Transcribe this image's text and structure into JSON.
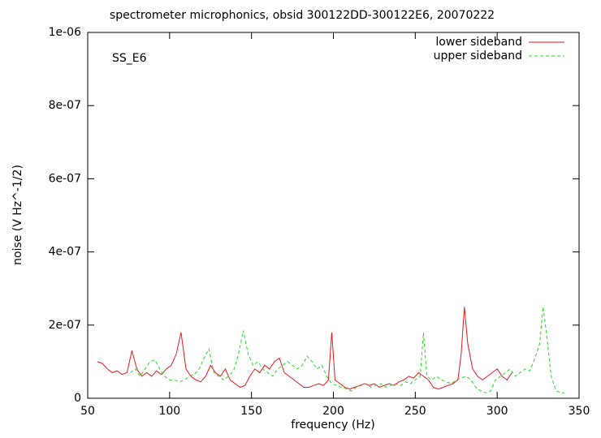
{
  "chart_data": {
    "type": "line",
    "title": "spectrometer microphonics, obsid 300122DD-300122E6, 20070222",
    "x_label": "frequency (Hz)",
    "y_label": "noise (V Hz^-1/2)",
    "annotation": "SS_E6",
    "legend": "top right",
    "xlim": [
      50,
      350
    ],
    "xticks": [
      50,
      100,
      150,
      200,
      250,
      300,
      350
    ],
    "ylim": [
      0,
      1e-06
    ],
    "yticks": [
      0,
      {
        "value": 2e-07,
        "label": "2e-07"
      },
      {
        "value": 4e-07,
        "label": "4e-07"
      },
      {
        "value": 6e-07,
        "label": "6e-07"
      },
      {
        "value": 8e-07,
        "label": "8e-07"
      },
      {
        "value": 1e-06,
        "label": "1e-06"
      }
    ],
    "series": [
      {
        "name": "lower sideband",
        "color": "#e8171f",
        "dash": "none",
        "x": [
          56,
          59,
          62,
          65,
          68,
          71,
          74,
          77,
          80,
          83,
          86,
          89,
          92,
          95,
          98,
          101,
          104,
          107,
          110,
          113,
          116,
          119,
          122,
          125,
          128,
          131,
          134,
          137,
          140,
          143,
          146,
          149,
          152,
          155,
          158,
          161,
          164,
          167,
          170,
          173,
          176,
          179,
          182,
          185,
          188,
          191,
          194,
          197,
          199,
          201,
          204,
          207,
          210,
          213,
          216,
          219,
          222,
          225,
          228,
          231,
          234,
          237,
          240,
          243,
          246,
          249,
          252,
          255,
          258,
          261,
          264,
          267,
          270,
          273,
          276,
          278,
          280,
          282,
          285,
          288,
          291,
          294,
          297,
          300,
          303,
          306,
          309
        ],
        "values": [
          1e-07,
          9.5e-08,
          8e-08,
          7e-08,
          7.5e-08,
          6.5e-08,
          7e-08,
          1.3e-07,
          8e-08,
          6e-08,
          7e-08,
          6e-08,
          7.5e-08,
          6.5e-08,
          8e-08,
          9e-08,
          1.2e-07,
          1.8e-07,
          8e-08,
          6e-08,
          5e-08,
          4.5e-08,
          6e-08,
          9e-08,
          7e-08,
          6e-08,
          8e-08,
          5e-08,
          4e-08,
          3e-08,
          3.5e-08,
          6e-08,
          8e-08,
          7e-08,
          9e-08,
          8e-08,
          1e-07,
          1.1e-07,
          7e-08,
          6e-08,
          5e-08,
          4e-08,
          3e-08,
          3e-08,
          3.5e-08,
          4e-08,
          3.5e-08,
          5e-08,
          1.8e-07,
          5e-08,
          4e-08,
          3e-08,
          2.5e-08,
          3e-08,
          3.5e-08,
          4e-08,
          3.5e-08,
          4e-08,
          3e-08,
          3.5e-08,
          4e-08,
          3.5e-08,
          4.5e-08,
          5e-08,
          6e-08,
          5.5e-08,
          7e-08,
          6e-08,
          5e-08,
          3e-08,
          2.5e-08,
          3e-08,
          3.5e-08,
          4e-08,
          5e-08,
          1.2e-07,
          2.5e-07,
          1.5e-07,
          8e-08,
          6e-08,
          5e-08,
          6e-08,
          7e-08,
          8e-08,
          6e-08,
          5e-08,
          7e-08
        ]
      },
      {
        "name": "upper sideband",
        "color": "#22dd22",
        "dash": "4 3",
        "x": [
          76,
          79,
          82,
          85,
          88,
          91,
          94,
          97,
          100,
          103,
          106,
          109,
          112,
          115,
          118,
          121,
          124,
          127,
          130,
          133,
          136,
          139,
          142,
          145,
          148,
          151,
          154,
          157,
          160,
          163,
          166,
          169,
          172,
          175,
          178,
          181,
          184,
          187,
          190,
          193,
          196,
          199,
          202,
          205,
          208,
          211,
          214,
          217,
          220,
          223,
          226,
          229,
          232,
          235,
          238,
          241,
          244,
          247,
          250,
          253,
          255,
          257,
          260,
          263,
          266,
          269,
          272,
          275,
          278,
          281,
          284,
          287,
          290,
          293,
          296,
          299,
          302,
          305,
          308,
          311,
          314,
          317,
          320,
          323,
          326,
          328,
          330,
          333,
          336,
          339,
          341
        ],
        "values": [
          7e-08,
          8e-08,
          6e-08,
          8e-08,
          1e-07,
          1.05e-07,
          8e-08,
          6e-08,
          5e-08,
          5e-08,
          4.5e-08,
          5e-08,
          6e-08,
          6.5e-08,
          8e-08,
          1.1e-07,
          1.35e-07,
          7e-08,
          6e-08,
          5e-08,
          6e-08,
          7.5e-08,
          1.2e-07,
          1.85e-07,
          1.2e-07,
          9e-08,
          1e-07,
          8e-08,
          7e-08,
          6e-08,
          8e-08,
          9e-08,
          1e-07,
          9e-08,
          8e-08,
          9e-08,
          1.15e-07,
          1e-07,
          8e-08,
          9e-08,
          6e-08,
          4e-08,
          3.5e-08,
          3e-08,
          2.5e-08,
          2e-08,
          3e-08,
          3.5e-08,
          4e-08,
          3e-08,
          3.5e-08,
          4e-08,
          3e-08,
          3.5e-08,
          4e-08,
          3.5e-08,
          4.5e-08,
          4e-08,
          5e-08,
          6e-08,
          1.8e-07,
          6e-08,
          5e-08,
          6e-08,
          5e-08,
          4.5e-08,
          4e-08,
          5e-08,
          5.5e-08,
          6e-08,
          5e-08,
          3e-08,
          2e-08,
          1.5e-08,
          2e-08,
          5e-08,
          6e-08,
          7e-08,
          8e-08,
          6e-08,
          7e-08,
          8e-08,
          7.5e-08,
          1.1e-07,
          1.5e-07,
          2.5e-07,
          1.8e-07,
          6e-08,
          2e-08,
          1.5e-08,
          1.5e-08
        ]
      }
    ]
  }
}
